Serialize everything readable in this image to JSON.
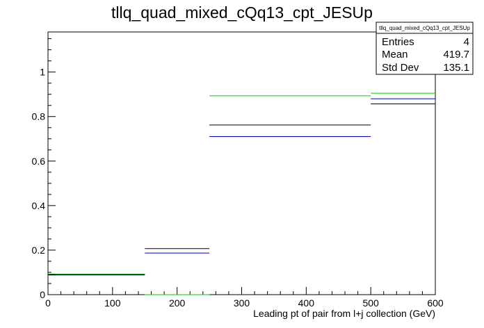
{
  "chart_data": {
    "type": "step",
    "title": "tllq_quad_mixed_cQq13_cpt_JESUp",
    "xlabel": "Leading pt of pair from l+j collection (GeV)",
    "ylabel": "",
    "xlim": [
      0,
      600
    ],
    "ylim": [
      0,
      1.18
    ],
    "x_ticks": [
      0,
      100,
      200,
      300,
      400,
      500,
      600
    ],
    "y_ticks": [
      0,
      0.2,
      0.4,
      0.6,
      0.8,
      1
    ],
    "y_tick_labels": [
      "0",
      "0.2",
      "0.4",
      "0.6",
      "0.8",
      "1"
    ],
    "bin_edges": [
      0,
      150,
      250,
      500,
      600
    ],
    "series": [
      {
        "color": "#00cc00",
        "values": [
          0.092,
          0.0,
          0.893,
          0.905
        ]
      },
      {
        "color": "#0000cc",
        "values": [
          0.088,
          0.187,
          0.71,
          0.88
        ]
      },
      {
        "color": "#000000",
        "values": [
          0.09,
          0.207,
          0.762,
          0.857
        ]
      }
    ],
    "grid": false,
    "stats_box": {
      "title": "tllq_quad_mixed_cQq13_cpt_JESUp",
      "rows": [
        {
          "label": "Entries",
          "value": "4"
        },
        {
          "label": "Mean",
          "value": "419.7"
        },
        {
          "label": "Std Dev",
          "value": "135.1"
        }
      ]
    }
  }
}
